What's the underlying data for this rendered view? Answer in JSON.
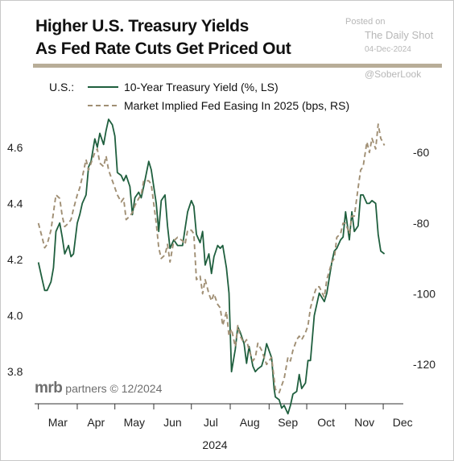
{
  "header": {
    "title_line1": "Higher U.S. Treasury Yields",
    "title_line2": "As Fed Rate Cuts Get Priced Out"
  },
  "watermark": {
    "posted": "Posted on",
    "source": "The Daily Shot",
    "date": "04-Dec-2024",
    "handle": "@SoberLook"
  },
  "credit": {
    "logo": "mrb",
    "text": "partners © 12/2024"
  },
  "colors": {
    "yield_line": "#1f5f3e",
    "easing_line": "#a08f74",
    "rule": "#b8ad98"
  },
  "chart_data": {
    "type": "line",
    "title": "Higher U.S. Treasury Yields As Fed Rate Cuts Get Priced Out",
    "xlabel": "2024",
    "legend_prefix": "U.S.:",
    "legend_placement": "top",
    "grid": false,
    "x_ticks": [
      "Mar",
      "Apr",
      "May",
      "Jun",
      "Jul",
      "Aug",
      "Sep",
      "Oct",
      "Nov",
      "Dec"
    ],
    "x_range_months": [
      "Mar",
      "Dec"
    ],
    "left_axis": {
      "ylim": [
        3.7,
        4.72
      ],
      "ticks": [
        "3.8",
        "4.0",
        "4.2",
        "4.4",
        "4.6"
      ]
    },
    "right_axis": {
      "ylim": [
        -130,
        -49
      ],
      "ticks": [
        "-120",
        "-100",
        "-80",
        "-60"
      ]
    },
    "series": [
      {
        "name": "10-Year Treasury Yield (%, LS)",
        "axis": "left",
        "style": "solid",
        "x": [
          "Mar 01",
          "Mar 04",
          "Mar 06",
          "Mar 08",
          "Mar 11",
          "Mar 13",
          "Mar 15",
          "Mar 18",
          "Mar 20",
          "Mar 22",
          "Mar 25",
          "Mar 27",
          "Mar 29",
          "Apr 01",
          "Apr 03",
          "Apr 05",
          "Apr 08",
          "Apr 10",
          "Apr 12",
          "Apr 15",
          "Apr 17",
          "Apr 19",
          "Apr 22",
          "Apr 24",
          "Apr 26",
          "Apr 29",
          "May 01",
          "May 03",
          "May 06",
          "May 08",
          "May 10",
          "May 13",
          "May 15",
          "May 17",
          "May 20",
          "May 22",
          "May 24",
          "May 28",
          "May 30",
          "Jun 03",
          "Jun 05",
          "Jun 07",
          "Jun 10",
          "Jun 12",
          "Jun 14",
          "Jun 17",
          "Jun 20",
          "Jun 24",
          "Jun 26",
          "Jun 28",
          "Jul 01",
          "Jul 03",
          "Jul 05",
          "Jul 08",
          "Jul 10",
          "Jul 12",
          "Jul 15",
          "Jul 17",
          "Jul 19",
          "Jul 22",
          "Jul 24",
          "Jul 26",
          "Jul 29",
          "Jul 31",
          "Aug 02",
          "Aug 05",
          "Aug 07",
          "Aug 09",
          "Aug 12",
          "Aug 14",
          "Aug 16",
          "Aug 19",
          "Aug 21",
          "Aug 23",
          "Aug 26",
          "Aug 28",
          "Aug 30",
          "Sep 03",
          "Sep 05",
          "Sep 06",
          "Sep 09",
          "Sep 11",
          "Sep 13",
          "Sep 16",
          "Sep 18",
          "Sep 20",
          "Sep 23",
          "Sep 25",
          "Sep 27",
          "Sep 30",
          "Oct 02",
          "Oct 04",
          "Oct 07",
          "Oct 09",
          "Oct 11",
          "Oct 15",
          "Oct 17",
          "Oct 21",
          "Oct 23",
          "Oct 25",
          "Oct 28",
          "Oct 30",
          "Nov 01",
          "Nov 04",
          "Nov 06",
          "Nov 08",
          "Nov 11",
          "Nov 13",
          "Nov 15",
          "Nov 18",
          "Nov 20",
          "Nov 22",
          "Nov 25",
          "Nov 27",
          "Nov 29",
          "Dec 02"
        ],
        "values": [
          4.19,
          4.13,
          4.09,
          4.09,
          4.12,
          4.17,
          4.3,
          4.33,
          4.28,
          4.22,
          4.25,
          4.21,
          4.22,
          4.33,
          4.36,
          4.4,
          4.43,
          4.53,
          4.55,
          4.63,
          4.6,
          4.65,
          4.61,
          4.66,
          4.7,
          4.68,
          4.64,
          4.51,
          4.5,
          4.48,
          4.5,
          4.46,
          4.36,
          4.42,
          4.44,
          4.42,
          4.46,
          4.55,
          4.52,
          4.4,
          4.3,
          4.41,
          4.43,
          4.32,
          4.24,
          4.27,
          4.25,
          4.25,
          4.31,
          4.37,
          4.41,
          4.39,
          4.29,
          4.26,
          4.3,
          4.18,
          4.22,
          4.15,
          4.21,
          4.25,
          4.24,
          4.25,
          4.17,
          4.08,
          3.8,
          3.88,
          3.96,
          3.94,
          3.9,
          3.83,
          3.89,
          3.82,
          3.8,
          3.81,
          3.82,
          3.85,
          3.9,
          3.85,
          3.74,
          3.71,
          3.7,
          3.67,
          3.68,
          3.65,
          3.68,
          3.72,
          3.73,
          3.79,
          3.74,
          3.76,
          3.84,
          3.84,
          4.0,
          4.04,
          4.08,
          4.05,
          4.08,
          4.19,
          4.23,
          4.24,
          4.27,
          4.28,
          4.37,
          4.27,
          4.37,
          4.3,
          4.32,
          4.43,
          4.43,
          4.4,
          4.4,
          4.41,
          4.4,
          4.29,
          4.23,
          4.22
        ]
      },
      {
        "name": "Market Implied Fed Easing In 2025 (bps, RS)",
        "axis": "right",
        "style": "dashed",
        "x": [
          "Mar 01",
          "Mar 04",
          "Mar 06",
          "Mar 08",
          "Mar 11",
          "Mar 13",
          "Mar 15",
          "Mar 18",
          "Mar 20",
          "Mar 22",
          "Mar 25",
          "Mar 27",
          "Mar 29",
          "Apr 01",
          "Apr 03",
          "Apr 05",
          "Apr 08",
          "Apr 10",
          "Apr 12",
          "Apr 15",
          "Apr 17",
          "Apr 19",
          "Apr 22",
          "Apr 24",
          "Apr 26",
          "Apr 29",
          "May 01",
          "May 03",
          "May 06",
          "May 08",
          "May 10",
          "May 13",
          "May 15",
          "May 17",
          "May 20",
          "May 22",
          "May 24",
          "May 28",
          "May 30",
          "Jun 03",
          "Jun 05",
          "Jun 07",
          "Jun 10",
          "Jun 12",
          "Jun 14",
          "Jun 17",
          "Jun 20",
          "Jun 24",
          "Jun 26",
          "Jun 28",
          "Jul 01",
          "Jul 03",
          "Jul 05",
          "Jul 08",
          "Jul 10",
          "Jul 12",
          "Jul 15",
          "Jul 17",
          "Jul 19",
          "Jul 22",
          "Jul 24",
          "Jul 26",
          "Jul 29",
          "Jul 31",
          "Aug 02",
          "Aug 05",
          "Aug 07",
          "Aug 09",
          "Aug 12",
          "Aug 14",
          "Aug 16",
          "Aug 19",
          "Aug 21",
          "Aug 23",
          "Aug 26",
          "Aug 28",
          "Aug 30",
          "Sep 03",
          "Sep 05",
          "Sep 06",
          "Sep 09",
          "Sep 11",
          "Sep 13",
          "Sep 16",
          "Sep 18",
          "Sep 20",
          "Sep 23",
          "Sep 25",
          "Sep 27",
          "Sep 30",
          "Oct 02",
          "Oct 04",
          "Oct 07",
          "Oct 09",
          "Oct 11",
          "Oct 15",
          "Oct 17",
          "Oct 21",
          "Oct 23",
          "Oct 25",
          "Oct 28",
          "Oct 30",
          "Nov 01",
          "Nov 04",
          "Nov 06",
          "Nov 08",
          "Nov 11",
          "Nov 13",
          "Nov 15",
          "Nov 18",
          "Nov 20",
          "Nov 22",
          "Nov 25",
          "Nov 27",
          "Nov 29",
          "Dec 02"
        ],
        "values": [
          -80,
          -84,
          -87,
          -86,
          -82,
          -77,
          -72,
          -73,
          -78,
          -81,
          -80,
          -79,
          -76,
          -72,
          -70,
          -67,
          -62,
          -65,
          -63,
          -60,
          -59,
          -63,
          -64,
          -61,
          -65,
          -68,
          -70,
          -72,
          -74,
          -73,
          -79,
          -78,
          -77,
          -75,
          -73,
          -72,
          -68,
          -68,
          -69,
          -80,
          -87,
          -90,
          -89,
          -86,
          -91,
          -85,
          -84,
          -85,
          -86,
          -82,
          -82,
          -83,
          -96,
          -95,
          -100,
          -96,
          -100,
          -102,
          -100,
          -103,
          -104,
          -109,
          -105,
          -112,
          -110,
          -115,
          -109,
          -112,
          -114,
          -113,
          -116,
          -119,
          -118,
          -114,
          -116,
          -118,
          -120,
          -118,
          -124,
          -127,
          -128,
          -126,
          -124,
          -118,
          -119,
          -116,
          -113,
          -112,
          -113,
          -111,
          -109,
          -104,
          -100,
          -98,
          -98,
          -101,
          -96,
          -91,
          -90,
          -84,
          -83,
          -80,
          -80,
          -83,
          -78,
          -78,
          -70,
          -65,
          -64,
          -57,
          -60,
          -56,
          -59,
          -52,
          -56,
          -58
        ]
      }
    ]
  }
}
